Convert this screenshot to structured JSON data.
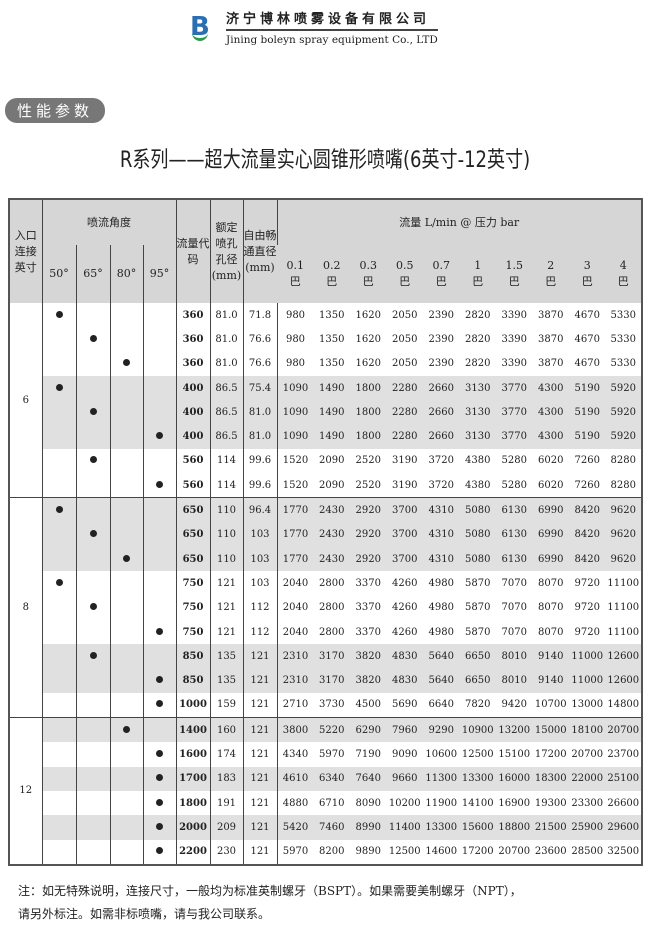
{
  "header": {
    "company_cn": "济宁博林喷雾设备有限公司",
    "company_en": "Jining boleyn spray equipment Co., LTD"
  },
  "section_badge": "性能参数",
  "title": "R系列——超大流量实心圆锥形喷嘴(6英寸-12英寸)",
  "table": {
    "headers": {
      "inlet": "入口连接英寸",
      "angle": "喷流角度",
      "angles": [
        "50°",
        "65°",
        "80°",
        "95°"
      ],
      "code": "流量代码",
      "orifice": "额定喷孔孔径(mm)",
      "passage": "自由畅通直径(mm)",
      "flow": "流量 L/min @ 压力 bar",
      "pressures": [
        "0.1",
        "0.2",
        "0.3",
        "0.5",
        "0.7",
        "1",
        "1.5",
        "2",
        "3",
        "4"
      ],
      "pressure_unit": "巴"
    },
    "groups": [
      {
        "size": "6",
        "rows": [
          {
            "angle": "50°",
            "code": "360",
            "orifice": "81.0",
            "passage": "71.8",
            "flows": [
              980,
              1350,
              1620,
              2050,
              2390,
              2820,
              3390,
              3870,
              4670,
              5330
            ]
          },
          {
            "angle": "65°",
            "code": "360",
            "orifice": "81.0",
            "passage": "76.6",
            "flows": [
              980,
              1350,
              1620,
              2050,
              2390,
              2820,
              3390,
              3870,
              4670,
              5330
            ]
          },
          {
            "angle": "80°",
            "code": "360",
            "orifice": "81.0",
            "passage": "76.6",
            "flows": [
              980,
              1350,
              1620,
              2050,
              2390,
              2820,
              3390,
              3870,
              4670,
              5330
            ]
          },
          {
            "angle": "50°",
            "code": "400",
            "orifice": "86.5",
            "passage": "75.4",
            "flows": [
              1090,
              1490,
              1800,
              2280,
              2660,
              3130,
              3770,
              4300,
              5190,
              5920
            ],
            "shaded": true
          },
          {
            "angle": "65°",
            "code": "400",
            "orifice": "86.5",
            "passage": "81.0",
            "flows": [
              1090,
              1490,
              1800,
              2280,
              2660,
              3130,
              3770,
              4300,
              5190,
              5920
            ],
            "shaded": true
          },
          {
            "angle": "95°",
            "code": "400",
            "orifice": "86.5",
            "passage": "81.0",
            "flows": [
              1090,
              1490,
              1800,
              2280,
              2660,
              3130,
              3770,
              4300,
              5190,
              5920
            ],
            "shaded": true
          },
          {
            "angle": "65°",
            "code": "560",
            "orifice": "114",
            "passage": "99.6",
            "flows": [
              1520,
              2090,
              2520,
              3190,
              3720,
              4380,
              5280,
              6020,
              7260,
              8280
            ]
          },
          {
            "angle": "95°",
            "code": "560",
            "orifice": "114",
            "passage": "99.6",
            "flows": [
              1520,
              2090,
              2520,
              3190,
              3720,
              4380,
              5280,
              6020,
              7260,
              8280
            ]
          }
        ]
      },
      {
        "size": "8",
        "rows": [
          {
            "angle": "50°",
            "code": "650",
            "orifice": "110",
            "passage": "96.4",
            "flows": [
              1770,
              2430,
              2920,
              3700,
              4310,
              5080,
              6130,
              6990,
              8420,
              9620
            ],
            "shaded": true
          },
          {
            "angle": "65°",
            "code": "650",
            "orifice": "110",
            "passage": "103",
            "flows": [
              1770,
              2430,
              2920,
              3700,
              4310,
              5080,
              6130,
              6990,
              8420,
              9620
            ],
            "shaded": true
          },
          {
            "angle": "80°",
            "code": "650",
            "orifice": "110",
            "passage": "103",
            "flows": [
              1770,
              2430,
              2920,
              3700,
              4310,
              5080,
              6130,
              6990,
              8420,
              9620
            ],
            "shaded": true
          },
          {
            "angle": "50°",
            "code": "750",
            "orifice": "121",
            "passage": "103",
            "flows": [
              2040,
              2800,
              3370,
              4260,
              4980,
              5870,
              7070,
              8070,
              9720,
              11100
            ]
          },
          {
            "angle": "65°",
            "code": "750",
            "orifice": "121",
            "passage": "112",
            "flows": [
              2040,
              2800,
              3370,
              4260,
              4980,
              5870,
              7070,
              8070,
              9720,
              11100
            ]
          },
          {
            "angle": "95°",
            "code": "750",
            "orifice": "121",
            "passage": "112",
            "flows": [
              2040,
              2800,
              3370,
              4260,
              4980,
              5870,
              7070,
              8070,
              9720,
              11100
            ]
          },
          {
            "angle": "65°",
            "code": "850",
            "orifice": "135",
            "passage": "121",
            "flows": [
              2310,
              3170,
              3820,
              4830,
              5640,
              6650,
              8010,
              9140,
              11000,
              12600
            ],
            "shaded": true
          },
          {
            "angle": "95°",
            "code": "850",
            "orifice": "135",
            "passage": "121",
            "flows": [
              2310,
              3170,
              3820,
              4830,
              5640,
              6650,
              8010,
              9140,
              11000,
              12600
            ],
            "shaded": true
          },
          {
            "angle": "95°",
            "code": "1000",
            "orifice": "159",
            "passage": "121",
            "flows": [
              2710,
              3730,
              4500,
              5690,
              6640,
              7820,
              9420,
              10700,
              13000,
              14800
            ]
          }
        ]
      },
      {
        "size": "12",
        "rows": [
          {
            "angle": "80°",
            "code": "1400",
            "orifice": "160",
            "passage": "121",
            "flows": [
              3800,
              5220,
              6290,
              7960,
              9290,
              10900,
              13200,
              15000,
              18100,
              20700
            ],
            "shaded": true
          },
          {
            "angle": "95°",
            "code": "1600",
            "orifice": "174",
            "passage": "121",
            "flows": [
              4340,
              5970,
              7190,
              9090,
              10600,
              12500,
              15100,
              17200,
              20700,
              23700
            ]
          },
          {
            "angle": "95°",
            "code": "1700",
            "orifice": "183",
            "passage": "121",
            "flows": [
              4610,
              6340,
              7640,
              9660,
              11300,
              13300,
              16000,
              18300,
              22000,
              25100
            ],
            "shaded": true
          },
          {
            "angle": "95°",
            "code": "1800",
            "orifice": "191",
            "passage": "121",
            "flows": [
              4880,
              6710,
              8090,
              10200,
              11900,
              14100,
              16900,
              19300,
              23300,
              26600
            ]
          },
          {
            "angle": "95°",
            "code": "2000",
            "orifice": "209",
            "passage": "121",
            "flows": [
              5420,
              7460,
              8990,
              11400,
              13300,
              15600,
              18800,
              21500,
              25900,
              29600
            ],
            "shaded": true
          },
          {
            "angle": "95°",
            "code": "2200",
            "orifice": "230",
            "passage": "121",
            "flows": [
              5970,
              8200,
              9890,
              12500,
              14600,
              17200,
              20700,
              23600,
              28500,
              32500
            ]
          }
        ]
      }
    ]
  },
  "note": [
    "注：如无特殊说明，连接尺寸，一般均为标准英制螺牙（BSPT）。如果需要美制螺牙（NPT），",
    "请另外标注。如需非标喷嘴，请与我公司联系。"
  ]
}
